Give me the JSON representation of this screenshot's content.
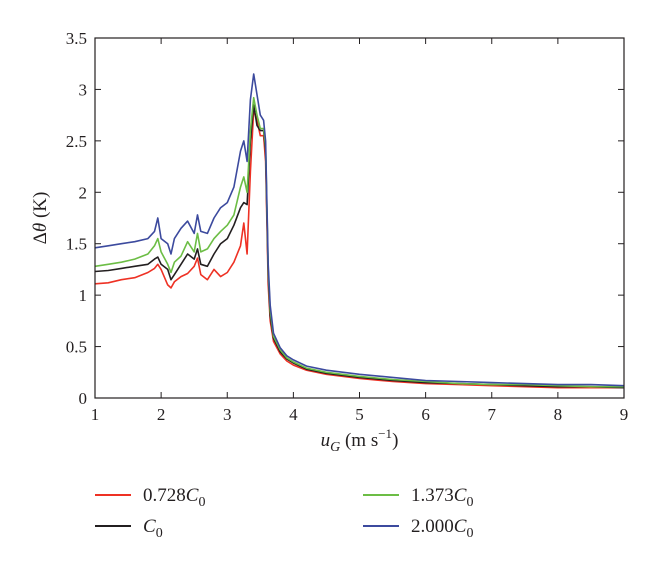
{
  "chart_data": {
    "type": "line",
    "xlabel": "u_G (m s^-1)",
    "ylabel": "Δθ (K)",
    "xlim": [
      1,
      9
    ],
    "ylim": [
      0,
      3.5
    ],
    "xticks": [
      "1",
      "2",
      "3",
      "4",
      "5",
      "6",
      "7",
      "8",
      "9"
    ],
    "yticks": [
      "0",
      "0.5",
      "1",
      "1.5",
      "2",
      "2.5",
      "3",
      "3.5"
    ],
    "grid": false,
    "legend_position": "bottom",
    "x": [
      1.0,
      1.2,
      1.4,
      1.6,
      1.8,
      1.9,
      1.95,
      2.0,
      2.1,
      2.15,
      2.2,
      2.3,
      2.4,
      2.5,
      2.55,
      2.6,
      2.7,
      2.8,
      2.9,
      3.0,
      3.1,
      3.2,
      3.25,
      3.3,
      3.35,
      3.4,
      3.45,
      3.5,
      3.55,
      3.58,
      3.6,
      3.62,
      3.65,
      3.7,
      3.8,
      3.9,
      4.0,
      4.2,
      4.5,
      5.0,
      5.5,
      6.0,
      6.5,
      7.0,
      7.5,
      8.0,
      8.5,
      9.0
    ],
    "series": [
      {
        "name": "0.728C0",
        "color": "#ee3124",
        "values": [
          1.11,
          1.12,
          1.15,
          1.17,
          1.22,
          1.26,
          1.3,
          1.25,
          1.1,
          1.07,
          1.13,
          1.18,
          1.21,
          1.28,
          1.36,
          1.2,
          1.15,
          1.25,
          1.18,
          1.22,
          1.32,
          1.48,
          1.7,
          1.4,
          2.2,
          2.8,
          2.7,
          2.55,
          2.55,
          2.3,
          1.7,
          1.1,
          0.75,
          0.55,
          0.43,
          0.36,
          0.32,
          0.27,
          0.23,
          0.19,
          0.16,
          0.14,
          0.13,
          0.12,
          0.11,
          0.1,
          0.1,
          0.1
        ]
      },
      {
        "name": "C0",
        "color": "#231f20",
        "values": [
          1.23,
          1.24,
          1.26,
          1.28,
          1.3,
          1.35,
          1.37,
          1.3,
          1.25,
          1.15,
          1.2,
          1.3,
          1.4,
          1.35,
          1.45,
          1.3,
          1.28,
          1.4,
          1.5,
          1.55,
          1.68,
          1.85,
          1.9,
          1.88,
          2.5,
          2.85,
          2.65,
          2.6,
          2.6,
          2.4,
          1.8,
          1.2,
          0.8,
          0.58,
          0.45,
          0.38,
          0.34,
          0.28,
          0.24,
          0.2,
          0.17,
          0.15,
          0.14,
          0.13,
          0.12,
          0.11,
          0.11,
          0.1
        ]
      },
      {
        "name": "1.373C0",
        "color": "#6cbd45",
        "values": [
          1.28,
          1.3,
          1.32,
          1.35,
          1.4,
          1.48,
          1.55,
          1.42,
          1.3,
          1.22,
          1.32,
          1.38,
          1.52,
          1.42,
          1.6,
          1.42,
          1.45,
          1.55,
          1.62,
          1.68,
          1.78,
          2.05,
          2.15,
          2.0,
          2.6,
          2.92,
          2.75,
          2.62,
          2.62,
          2.45,
          1.85,
          1.25,
          0.85,
          0.6,
          0.47,
          0.39,
          0.35,
          0.29,
          0.25,
          0.21,
          0.18,
          0.16,
          0.14,
          0.13,
          0.13,
          0.12,
          0.11,
          0.11
        ]
      },
      {
        "name": "2.000C0",
        "color": "#3c4a9e",
        "values": [
          1.46,
          1.48,
          1.5,
          1.52,
          1.55,
          1.62,
          1.75,
          1.55,
          1.5,
          1.4,
          1.55,
          1.65,
          1.72,
          1.6,
          1.78,
          1.62,
          1.6,
          1.75,
          1.85,
          1.9,
          2.05,
          2.4,
          2.5,
          2.3,
          2.9,
          3.15,
          2.95,
          2.75,
          2.7,
          2.5,
          1.9,
          1.3,
          0.9,
          0.63,
          0.49,
          0.41,
          0.37,
          0.31,
          0.27,
          0.23,
          0.2,
          0.17,
          0.16,
          0.15,
          0.14,
          0.13,
          0.13,
          0.12
        ]
      }
    ]
  }
}
